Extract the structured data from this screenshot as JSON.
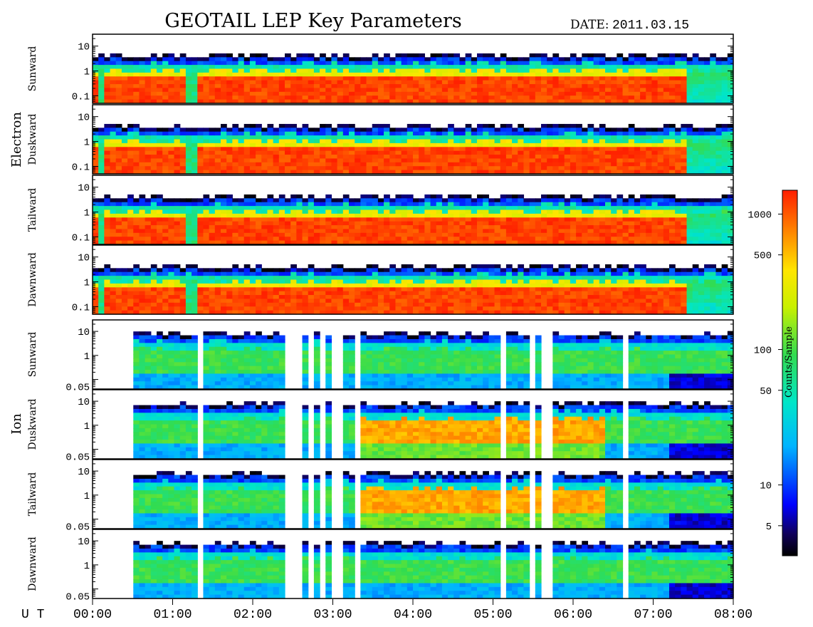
{
  "header": {
    "title": "GEOTAIL LEP Key Parameters",
    "date_label": "DATE:",
    "date_value": "2011.03.15"
  },
  "time_axis": {
    "prefix": "U T",
    "ticks": [
      "00:00",
      "01:00",
      "02:00",
      "03:00",
      "04:00",
      "05:00",
      "06:00",
      "07:00",
      "08:00"
    ]
  },
  "groups": [
    {
      "label": "Electron"
    },
    {
      "label": "Ion"
    }
  ],
  "colorbar": {
    "label": "Counts/Sample",
    "ticks": [
      "1000",
      "500",
      "100",
      "50",
      "10",
      "5"
    ],
    "tick_values": [
      1000,
      500,
      100,
      50,
      10,
      5
    ],
    "range": [
      3,
      1500
    ],
    "scale": "log"
  },
  "chart_data": {
    "type": "heatmap",
    "title": "GEOTAIL LEP Key Parameters",
    "date": "2011.03.15",
    "x_unit": "UT",
    "x_range": [
      "00:00",
      "08:00"
    ],
    "colorbar_scale": "log",
    "panels": [
      {
        "group": "Electron",
        "direction": "Sunward",
        "y_ticks": [
          "10",
          "1",
          "0.1"
        ],
        "y_tick_values": [
          10,
          1,
          0.1
        ],
        "y_range": [
          0.05,
          30
        ],
        "y_scale": "log"
      },
      {
        "group": "Electron",
        "direction": "Duskward",
        "y_ticks": [
          "10",
          "1",
          "0.1"
        ],
        "y_tick_values": [
          10,
          1,
          0.1
        ],
        "y_range": [
          0.05,
          30
        ],
        "y_scale": "log"
      },
      {
        "group": "Electron",
        "direction": "Tailward",
        "y_ticks": [
          "10",
          "1",
          "0.1"
        ],
        "y_tick_values": [
          10,
          1,
          0.1
        ],
        "y_range": [
          0.05,
          30
        ],
        "y_scale": "log"
      },
      {
        "group": "Electron",
        "direction": "Dawnward",
        "y_ticks": [
          "10",
          "1",
          "0.1"
        ],
        "y_tick_values": [
          10,
          1,
          0.1
        ],
        "y_range": [
          0.05,
          30
        ],
        "y_scale": "log"
      },
      {
        "group": "Ion",
        "direction": "Sunward",
        "y_ticks": [
          "10",
          "1",
          "0.05"
        ],
        "y_tick_values": [
          10,
          1,
          0.05
        ],
        "y_range": [
          0.04,
          30
        ],
        "y_scale": "log"
      },
      {
        "group": "Ion",
        "direction": "Duskward",
        "y_ticks": [
          "10",
          "1",
          "0.05"
        ],
        "y_tick_values": [
          10,
          1,
          0.05
        ],
        "y_range": [
          0.04,
          30
        ],
        "y_scale": "log"
      },
      {
        "group": "Ion",
        "direction": "Tailward",
        "y_ticks": [
          "10",
          "1",
          "0.05"
        ],
        "y_tick_values": [
          10,
          1,
          0.05
        ],
        "y_range": [
          0.04,
          30
        ],
        "y_scale": "log"
      },
      {
        "group": "Ion",
        "direction": "Dawnward",
        "y_ticks": [
          "10",
          "1",
          "0.05"
        ],
        "y_tick_values": [
          10,
          1,
          0.05
        ],
        "y_range": [
          0.04,
          30
        ],
        "y_scale": "log"
      }
    ]
  }
}
